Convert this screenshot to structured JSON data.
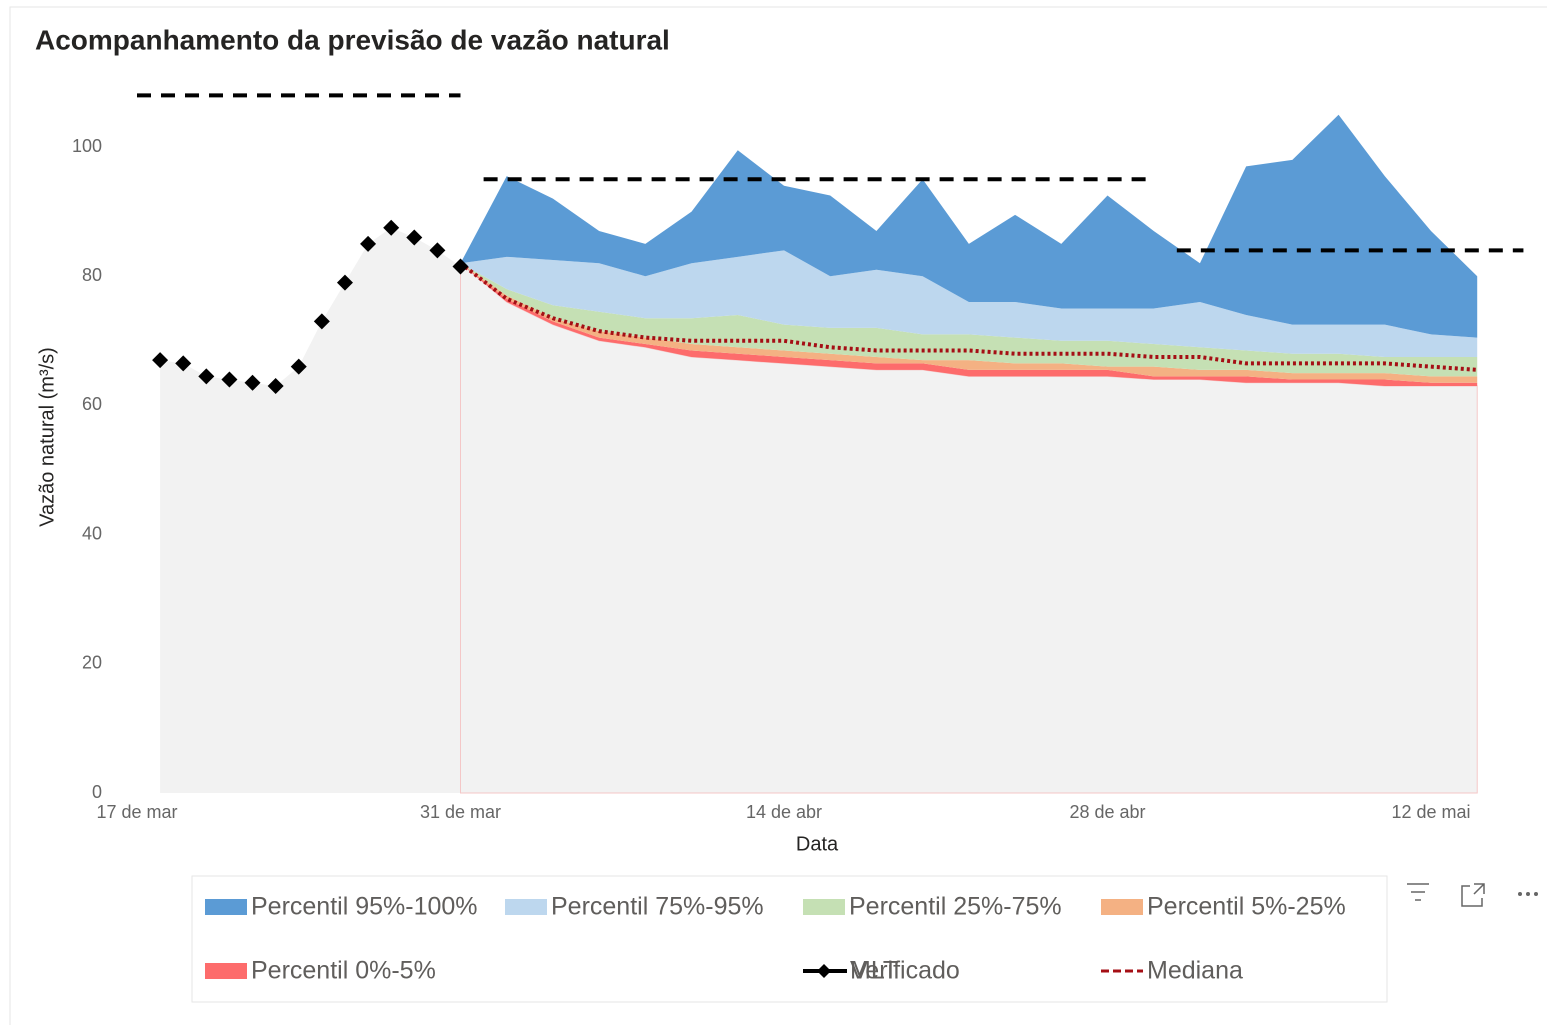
{
  "chart_data": {
    "type": "area",
    "title": "Acompanhamento da previsão de vazão natural",
    "xlabel": "Data",
    "ylabel": "Vazão natural (m³/s)",
    "xticks": [
      "17 de mar",
      "31 de mar",
      "14 de abr",
      "28 de abr",
      "12 de mai"
    ],
    "ylim": [
      0,
      110
    ],
    "yticks": [
      0,
      20,
      40,
      60,
      80,
      100
    ],
    "x": [
      "31 de mar",
      "2 de abr",
      "4 de abr",
      "6 de abr",
      "8 de abr",
      "10 de abr",
      "12 de abr",
      "14 de abr",
      "16 de abr",
      "18 de abr",
      "20 de abr",
      "22 de abr",
      "24 de abr",
      "26 de abr",
      "28 de abr",
      "30 de abr",
      "2 de mai",
      "4 de mai",
      "6 de mai",
      "8 de mai",
      "10 de mai",
      "12 de mai",
      "14 de mai"
    ],
    "stacked": [
      {
        "color": "#f2f2f2",
        "values": [
          82,
          76,
          72.5,
          70,
          69,
          67.5,
          67,
          66.5,
          66,
          65.5,
          65.5,
          64.5,
          64.5,
          64.5,
          64.5,
          64,
          64,
          63.5,
          63.5,
          63.5,
          63,
          63,
          63
        ]
      },
      {
        "name": "Percentil 0%-5%",
        "color": "#fd6c6c",
        "values": [
          0,
          0.5,
          0.5,
          0.5,
          0.5,
          1,
          1,
          1,
          1,
          1,
          1,
          1,
          1,
          1,
          1,
          0.5,
          0.5,
          1,
          0.5,
          0.5,
          1,
          0.5,
          0.5
        ]
      },
      {
        "name": "Percentil 5%-25%",
        "color": "#f4b183",
        "values": [
          0,
          0.5,
          0.5,
          1,
          1,
          1,
          1,
          1,
          1,
          1,
          0.5,
          1.5,
          1,
          1,
          0.5,
          1.5,
          1,
          1,
          1,
          1,
          1,
          1,
          1
        ]
      },
      {
        "name": "Percentil 25%-75%",
        "color": "#c5e0b4",
        "values": [
          0,
          1,
          2,
          3,
          3,
          4,
          5,
          4,
          4,
          4.5,
          4,
          4,
          4,
          3.5,
          4,
          3.5,
          3.5,
          3,
          3,
          3,
          2.5,
          3,
          3
        ]
      },
      {
        "name": "Percentil 75%-95%",
        "color": "#bdd7ee",
        "values": [
          0,
          5,
          7,
          7.5,
          6.5,
          8.5,
          9,
          11.5,
          8,
          9,
          9,
          5,
          5.5,
          5,
          5,
          5.5,
          7,
          5.5,
          4.5,
          4.5,
          5,
          3.5,
          3
        ]
      },
      {
        "name": "Percentil 95%-100%",
        "color": "#5b9bd5",
        "values": [
          0,
          12.5,
          9.5,
          5,
          5,
          8,
          16.5,
          10,
          12.5,
          6,
          15,
          9,
          13.5,
          10,
          17.5,
          12,
          6,
          23,
          25.5,
          32.5,
          23,
          16,
          9.5
        ]
      }
    ],
    "verificado": {
      "name": "Verificado",
      "color": "#000000",
      "x": [
        "18 de mar",
        "19 de mar",
        "20 de mar",
        "21 de mar",
        "22 de mar",
        "23 de mar",
        "24 de mar",
        "25 de mar",
        "26 de mar",
        "27 de mar",
        "28 de mar",
        "29 de mar",
        "30 de mar",
        "31 de mar"
      ],
      "values": [
        67,
        66.5,
        64.5,
        64,
        63.5,
        63,
        66,
        73,
        79,
        85,
        87.5,
        86,
        84,
        81.5
      ]
    },
    "mlt": {
      "name": "MLT",
      "color": "#000000",
      "x": [
        "17 de mar",
        "31 de mar",
        "1 de abr",
        "1 de abr",
        "30 de abr",
        "1 de mai",
        "1 de mai",
        "16 de mai"
      ],
      "values": [
        108,
        108,
        null,
        95,
        95,
        null,
        84,
        84
      ]
    },
    "mediana": {
      "name": "Mediana",
      "color": "#a50f15",
      "values": [
        82,
        76.5,
        73.5,
        71.5,
        70.5,
        70,
        70,
        70,
        69,
        68.5,
        68.5,
        68.5,
        68,
        68,
        68,
        67.5,
        67.5,
        66.5,
        66.5,
        66.5,
        66.5,
        66,
        65.5
      ]
    }
  }
}
